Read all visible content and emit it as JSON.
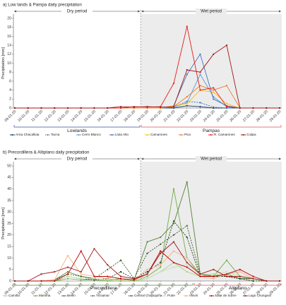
{
  "chart_data": [
    {
      "type": "line",
      "title": "a) Low lands & Pampa daily precipitation",
      "ylabel": "Precipitation [mm]",
      "ylim": [
        0,
        20
      ],
      "yticks": [
        0,
        2,
        4,
        6,
        8,
        10,
        12,
        14,
        16,
        18,
        20
      ],
      "grid": false,
      "categories": [
        "09-01-20",
        "10-01-20",
        "11-01-20",
        "12-01-20",
        "13-01-20",
        "14-01-20",
        "15-01-20",
        "16-01-20",
        "17-01-20",
        "18-01-20",
        "19-01-20",
        "20-01-20",
        "21-01-20",
        "22-01-20",
        "23-01-20",
        "24-01-20",
        "25-01-20",
        "26-01-20",
        "27-01-20",
        "28-01-20",
        "29-01-20"
      ],
      "periods": [
        {
          "label": "Dry period",
          "from": 0,
          "to": 9,
          "shaded": false
        },
        {
          "label": "Wet period",
          "from": 10,
          "to": 20,
          "shaded": true,
          "shade_color": "#ececec"
        }
      ],
      "groups": [
        {
          "label": "Lowlands",
          "from": 0,
          "to": 9,
          "color": "#2f5597"
        },
        {
          "label": "Pampas",
          "from": 10,
          "to": 20,
          "color": "#e05050"
        }
      ],
      "series": [
        {
          "name": "Arica Chacalluta",
          "color": "#1f3864",
          "dash": "solid",
          "values": [
            0,
            0,
            0,
            0,
            0,
            0,
            0,
            0,
            0,
            0,
            0,
            0,
            0,
            0.5,
            0.3,
            0,
            0,
            0,
            0,
            0,
            0
          ]
        },
        {
          "name": "Tacna",
          "color": "#2e75b6",
          "dash": "dash",
          "values": [
            0,
            0,
            0,
            0,
            0,
            0,
            0,
            0,
            0,
            0,
            0,
            0,
            0.2,
            1.5,
            1.2,
            0.2,
            0,
            0,
            0,
            0,
            0
          ]
        },
        {
          "name": "Cerro Blanco",
          "color": "#5b9bd5",
          "dash": "solid",
          "values": [
            0,
            0,
            0,
            0,
            0,
            0,
            0,
            0,
            0,
            0,
            0,
            0,
            0.2,
            1.2,
            7.5,
            2.5,
            0.3,
            0,
            0,
            0,
            0
          ]
        },
        {
          "name": "Lluta Alto",
          "color": "#4472c4",
          "dash": "solid",
          "values": [
            0,
            0,
            0,
            0,
            0,
            0,
            0,
            0,
            0,
            0,
            0,
            0,
            0.5,
            7.5,
            12,
            2,
            0.5,
            0,
            0,
            0,
            0
          ]
        },
        {
          "name": "Camarones",
          "color": "#ffc000",
          "dash": "solid",
          "values": [
            0,
            0,
            0,
            0,
            0,
            0,
            0,
            0,
            0,
            0,
            0,
            0,
            0.5,
            1,
            4,
            3.5,
            1,
            0,
            0,
            0,
            0
          ]
        },
        {
          "name": "Pica",
          "color": "#ed7d31",
          "dash": "solid",
          "values": [
            0,
            0,
            0,
            0,
            0,
            0,
            0,
            0,
            0,
            0,
            0,
            0,
            0.3,
            2.5,
            5,
            4,
            5,
            0,
            0,
            0,
            0
          ]
        },
        {
          "name": "R. Camarones",
          "color": "#e81c1c",
          "dash": "solid",
          "values": [
            0,
            0,
            0,
            0,
            0,
            0,
            0,
            0,
            0,
            0.3,
            0.2,
            0.3,
            5.5,
            18.2,
            4,
            4.5,
            0.3,
            0,
            0,
            0,
            0
          ]
        },
        {
          "name": "Codpa",
          "color": "#a31616",
          "dash": "solid",
          "values": [
            0,
            0,
            0,
            0,
            0,
            0,
            0,
            0,
            0.3,
            0.2,
            0.3,
            0.2,
            0.3,
            8.5,
            8,
            12,
            14,
            0,
            0,
            0,
            0
          ]
        }
      ],
      "legend": [
        {
          "name": "Arica Chacalluta",
          "color": "#1f3864",
          "dash": "solid"
        },
        {
          "name": "Tacna",
          "color": "#2e75b6",
          "dash": "dash"
        },
        {
          "name": "Cerro Blanco",
          "color": "#5b9bd5",
          "dash": "solid"
        },
        {
          "name": "Lluta Alto",
          "color": "#4472c4",
          "dash": "solid"
        },
        {
          "name": "Camarones",
          "color": "#ffc000",
          "dash": "solid"
        },
        {
          "name": "Pica",
          "color": "#ed7d31",
          "dash": "solid"
        },
        {
          "name": "R. Camarones",
          "color": "#e81c1c",
          "dash": "solid"
        },
        {
          "name": "Codpa",
          "color": "#a31616",
          "dash": "solid"
        }
      ],
      "legend_placement": "bottom"
    },
    {
      "type": "line",
      "title": "b) Precordillera & Altiplano daily precipitation",
      "ylabel": "Precipitation [mm]",
      "ylim": [
        0,
        50
      ],
      "yticks": [
        0,
        5,
        10,
        15,
        20,
        25,
        30,
        35,
        40,
        45,
        50
      ],
      "grid": false,
      "categories": [
        "09-01-20",
        "10-01-20",
        "11-01-20",
        "12-01-20",
        "13-01-20",
        "14-01-20",
        "15-01-20",
        "16-01-20",
        "17-01-20",
        "18-01-20",
        "19-01-20",
        "20-01-20",
        "21-01-20",
        "22-01-20",
        "23-01-20",
        "24-01-20",
        "25-01-20",
        "26-01-20",
        "27-01-20",
        "28-01-20",
        "29-01-20"
      ],
      "periods": [
        {
          "label": "Dry period",
          "from": 0,
          "to": 9,
          "shaded": false
        },
        {
          "label": "Wet period",
          "from": 10,
          "to": 20,
          "shaded": true,
          "shade_color": "#ececec"
        }
      ],
      "groups": [
        {
          "label": "Precordillera",
          "from": 0,
          "to": 13,
          "color": "#548235"
        },
        {
          "label": "Altiplano",
          "from": 14,
          "to": 20,
          "color": "#e05050"
        }
      ],
      "series": [
        {
          "name": "Camiña",
          "color": "#a9d18e",
          "dash": "solid",
          "values": [
            0,
            0,
            0,
            0,
            2,
            1,
            0.5,
            0,
            1,
            0,
            1,
            4,
            8,
            4,
            2,
            3,
            2,
            1,
            0,
            0,
            0
          ]
        },
        {
          "name": "Mamiña",
          "color": "#70ad47",
          "dash": "solid",
          "values": [
            0,
            0,
            0,
            0,
            1,
            0.5,
            0.5,
            0,
            0,
            0,
            2,
            6,
            40,
            10,
            3,
            2,
            9,
            2,
            1,
            0,
            0
          ]
        },
        {
          "name": "Belén",
          "color": "#548235",
          "dash": "solid",
          "values": [
            0,
            0,
            0,
            0.5,
            4,
            2,
            1,
            0.5,
            1,
            0.5,
            17,
            19,
            25,
            43,
            3,
            2,
            3,
            1,
            1,
            0,
            0
          ]
        },
        {
          "name": "Ticnamar",
          "color": "#375623",
          "dash": "dash",
          "values": [
            0,
            0,
            0,
            0.5,
            3,
            2,
            1,
            5,
            9,
            1,
            12,
            16,
            20,
            24,
            3,
            2,
            2,
            1,
            1,
            0,
            0
          ]
        },
        {
          "name": "Central Chapiquiña",
          "color": "#1e3a14",
          "dash": "dash",
          "values": [
            0,
            0,
            0,
            0,
            2,
            1,
            0.5,
            1,
            4,
            1,
            4,
            8,
            26,
            19,
            2,
            2,
            2,
            1,
            0,
            0,
            0
          ]
        },
        {
          "name": "Putre",
          "color": "#c5e0b4",
          "dash": "solid",
          "values": [
            0,
            0,
            0,
            0,
            2,
            1,
            1,
            0.5,
            0.5,
            0.5,
            1,
            4,
            6,
            7,
            3,
            3,
            4,
            2,
            1,
            0,
            0
          ]
        },
        {
          "name": "Visviri",
          "color": "#f4b183",
          "dash": "solid",
          "values": [
            0,
            0,
            0,
            0.5,
            11,
            3,
            2,
            1,
            0.5,
            0.5,
            5,
            7,
            13,
            10,
            2,
            1,
            3,
            4,
            1,
            0,
            0
          ]
        },
        {
          "name": "Salar de Surire",
          "color": "#c00000",
          "dash": "solid",
          "values": [
            0,
            0,
            0,
            0,
            3,
            13,
            2,
            2,
            1,
            0.5,
            3,
            13,
            8,
            6,
            2,
            2,
            3,
            5,
            2,
            0,
            0
          ]
        },
        {
          "name": "Lago Chungará",
          "color": "#9e1b1b",
          "dash": "solid",
          "values": [
            0,
            0,
            3,
            4,
            6,
            4,
            14,
            7,
            2,
            1,
            3,
            12,
            17,
            8,
            3,
            5,
            2,
            2,
            1,
            0,
            0
          ]
        }
      ],
      "legend": [
        {
          "name": "Camiña",
          "color": "#a9d18e",
          "dash": "solid"
        },
        {
          "name": "Mamiña",
          "color": "#70ad47",
          "dash": "solid"
        },
        {
          "name": "Belén",
          "color": "#548235",
          "dash": "solid"
        },
        {
          "name": "Ticnamar",
          "color": "#375623",
          "dash": "dash"
        },
        {
          "name": "Central Chapiquiña",
          "color": "#1e3a14",
          "dash": "dash"
        },
        {
          "name": "Putre",
          "color": "#c5e0b4",
          "dash": "solid"
        },
        {
          "name": "Visviri",
          "color": "#f4b183",
          "dash": "solid"
        },
        {
          "name": "Salar de Surire",
          "color": "#c00000",
          "dash": "solid"
        },
        {
          "name": "Lago Chungará",
          "color": "#9e1b1b",
          "dash": "solid"
        }
      ],
      "legend_placement": "bottom"
    }
  ]
}
